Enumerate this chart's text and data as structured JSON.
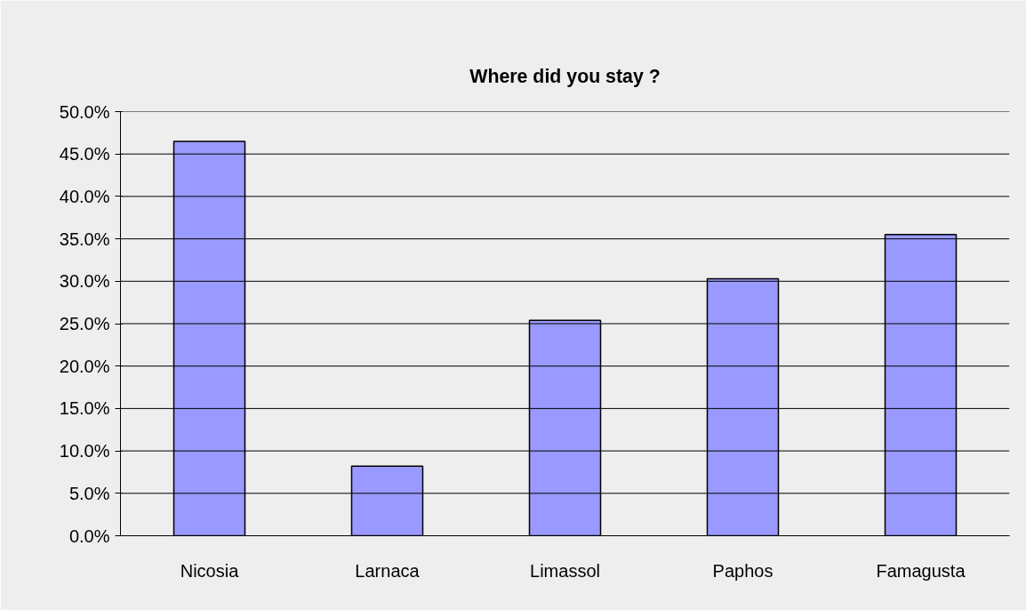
{
  "chart_data": {
    "type": "bar",
    "title": "Where did you stay ?",
    "categories": [
      "Nicosia",
      "Larnaca",
      "Limassol",
      "Paphos",
      "Famagusta"
    ],
    "values": [
      46.5,
      8.2,
      25.4,
      30.3,
      35.5
    ],
    "color": "#9999ff",
    "ylim": [
      0,
      50
    ],
    "yticks": [
      {
        "value": 0,
        "label": "0.0%"
      },
      {
        "value": 5,
        "label": "5.0%"
      },
      {
        "value": 10,
        "label": "10.0%"
      },
      {
        "value": 15,
        "label": "15.0%"
      },
      {
        "value": 20,
        "label": "20.0%"
      },
      {
        "value": 25,
        "label": "25.0%"
      },
      {
        "value": 30,
        "label": "30.0%"
      },
      {
        "value": 35,
        "label": "35.0%"
      },
      {
        "value": 40,
        "label": "40.0%"
      },
      {
        "value": 45,
        "label": "45.0%"
      },
      {
        "value": 50,
        "label": "50.0%"
      }
    ],
    "grid": "y"
  }
}
